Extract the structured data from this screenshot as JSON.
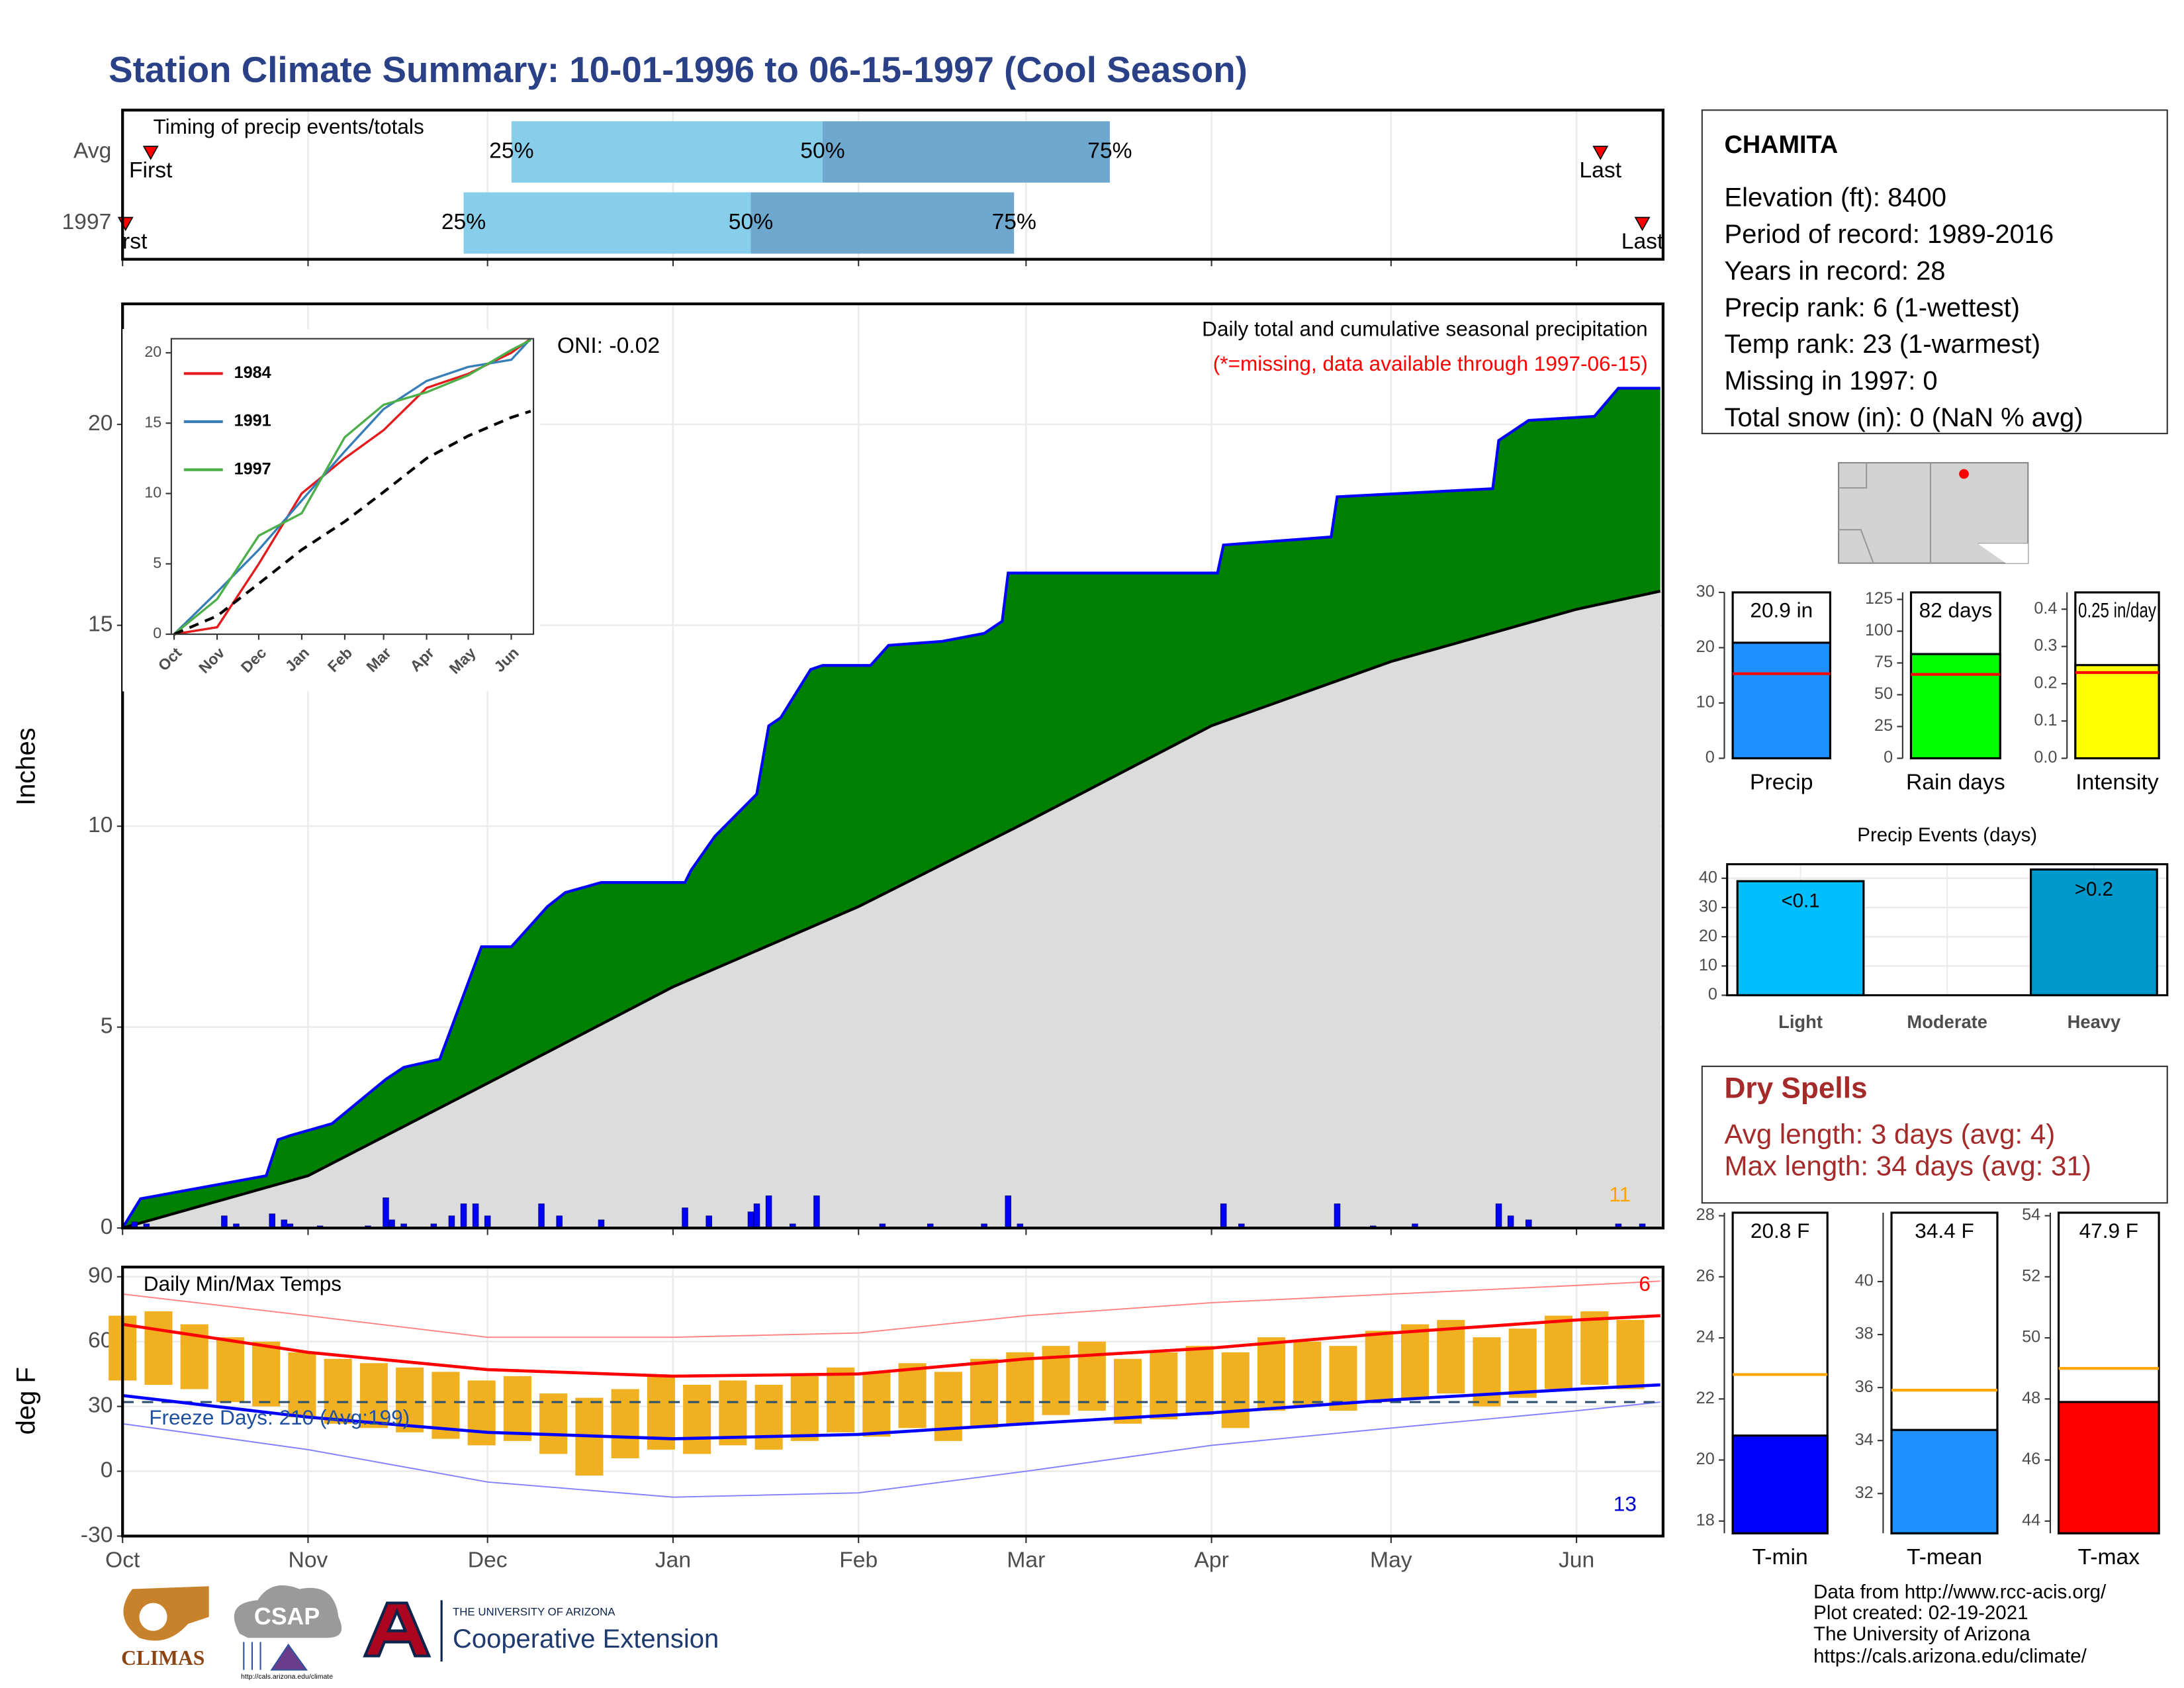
{
  "title": "Station Climate Summary: 10-01-1996 to 06-15-1997 (Cool Season)",
  "station_info": {
    "name": "CHAMITA",
    "lines": [
      "Elevation (ft): 8400",
      "Period of record: 1989-2016",
      "Years in record: 28",
      "Precip rank: 6 (1-wettest)",
      "Temp rank: 23 (1-warmest)",
      "Missing in 1997: 0",
      "Total snow (in): 0 (NaN % avg)"
    ]
  },
  "dry_spells": {
    "title": "Dry Spells",
    "lines": [
      "Avg length: 3 days (avg: 4)",
      "Max length: 34 days (avg: 31)"
    ]
  },
  "footer": [
    "Data from http://www.rcc-acis.org/",
    "Plot created: 02-19-2021",
    "The University of Arizona",
    "https://cals.arizona.edu/climate/"
  ],
  "logos": {
    "climas": "CLIMAS",
    "csap": "CSAP",
    "csap_url": "http://cals.arizona.edu/climate",
    "ua": "THE UNIVERSITY OF ARIZONA",
    "coop": "Cooperative Extension"
  },
  "chart_data": [
    {
      "type": "timeline",
      "title": "Timing of precip events/totals",
      "categories": [
        "Avg",
        "1997"
      ],
      "xlim": [
        0,
        257
      ],
      "first": [
        4.7,
        0.5
      ],
      "last": [
        247,
        254
      ],
      "q25": [
        65,
        57
      ],
      "q50": [
        117,
        105
      ],
      "q75": [
        165,
        149
      ],
      "first_label": "First",
      "last_label": "Last",
      "q_labels": [
        "25%",
        "50%",
        "75%"
      ],
      "colors": [
        "#87ceeb",
        "#6fa8cf"
      ],
      "marker_color": "#ff0000"
    },
    {
      "type": "cumulative",
      "ylabel": "Inches",
      "xlim": [
        0,
        257
      ],
      "ylim": [
        0,
        23
      ],
      "yticks": [
        0,
        5,
        10,
        15,
        20
      ],
      "grid": true,
      "annotations": [
        "Daily total and cumulative seasonal precipitation",
        "(*=missing, data available through 1997-06-15)",
        "ONI: -0.02",
        "11"
      ],
      "series": [
        {
          "color": "#008000",
          "line": "#0000ff",
          "x": [
            0,
            3,
            24,
            26,
            28,
            35,
            44,
            47,
            53,
            56,
            60,
            65,
            71,
            74,
            80,
            94,
            95,
            99,
            106,
            108,
            110,
            115,
            117,
            125,
            128,
            137,
            144,
            147,
            148,
            183,
            184,
            202,
            203,
            229,
            230,
            235,
            246,
            250,
            257
          ],
          "values": [
            0,
            0.73,
            1.3,
            2.2,
            2.3,
            2.6,
            3.7,
            4.0,
            4.2,
            5.4,
            7.0,
            7.0,
            8.0,
            8.35,
            8.6,
            8.6,
            8.9,
            9.75,
            10.8,
            12.5,
            12.7,
            13.9,
            14.0,
            14.0,
            14.5,
            14.6,
            14.8,
            15.1,
            16.3,
            16.3,
            17.0,
            17.2,
            18.2,
            18.4,
            19.6,
            20.1,
            20.2,
            20.9,
            20.9
          ]
        },
        {
          "color": "#dcdcdc",
          "line": "#000000",
          "x": [
            0,
            31,
            61,
            92,
            123,
            151,
            182,
            212,
            243,
            257
          ],
          "values": [
            0,
            1.3,
            3.6,
            6.0,
            8.0,
            10.1,
            12.5,
            14.1,
            15.4,
            15.85
          ]
        }
      ],
      "daily": {
        "color": "#0000ff",
        "x": [
          2,
          4,
          17,
          19,
          25,
          27,
          28,
          33,
          41,
          44,
          45,
          47,
          52,
          55,
          57,
          59,
          61,
          70,
          73,
          80,
          94,
          98,
          105,
          106,
          108,
          112,
          116,
          127,
          135,
          144,
          148,
          150,
          184,
          187,
          203,
          209,
          216,
          230,
          232,
          235,
          250,
          254
        ],
        "values": [
          0.15,
          0.1,
          0.3,
          0.1,
          0.35,
          0.2,
          0.1,
          0.05,
          0.05,
          0.75,
          0.2,
          0.1,
          0.1,
          0.3,
          0.6,
          0.6,
          0.3,
          0.6,
          0.3,
          0.2,
          0.5,
          0.3,
          0.4,
          0.6,
          0.8,
          0.1,
          0.8,
          0.1,
          0.1,
          0.1,
          0.8,
          0.1,
          0.6,
          0.1,
          0.6,
          0.05,
          0.1,
          0.6,
          0.3,
          0.2,
          0.1,
          0.1
        ]
      }
    },
    {
      "type": "line",
      "xlim": [
        0,
        257
      ],
      "ylim": [
        0,
        21
      ],
      "yticks": [
        0,
        5,
        10,
        15,
        20
      ],
      "xticks": [
        {
          "value": 0,
          "label": "Oct"
        },
        {
          "value": 31,
          "label": "Nov"
        },
        {
          "value": 61,
          "label": "Dec"
        },
        {
          "value": 92,
          "label": "Jan"
        },
        {
          "value": 123,
          "label": "Feb"
        },
        {
          "value": 151,
          "label": "Mar"
        },
        {
          "value": 182,
          "label": "Apr"
        },
        {
          "value": 212,
          "label": "May"
        },
        {
          "value": 243,
          "label": "Jun"
        }
      ],
      "x": [
        0,
        31,
        61,
        92,
        123,
        151,
        182,
        212,
        243,
        257
      ],
      "series": [
        {
          "name": "1984",
          "color": "#e41a1c",
          "values": [
            0,
            0.5,
            5,
            10,
            12.5,
            14.5,
            17.5,
            18.5,
            20.0,
            21
          ]
        },
        {
          "name": "1991",
          "color": "#377eb8",
          "values": [
            0,
            3,
            6,
            9.5,
            13,
            16,
            18,
            19,
            19.5,
            21
          ]
        },
        {
          "name": "1997",
          "color": "#4daf4a",
          "values": [
            0,
            2.5,
            7.0,
            8.6,
            14.0,
            16.3,
            17.2,
            18.4,
            20.2,
            20.9
          ]
        },
        {
          "color": "#000000",
          "dash": true,
          "values": [
            0,
            1.3,
            3.6,
            6.0,
            8.0,
            10.1,
            12.5,
            14.1,
            15.4,
            15.85
          ]
        }
      ]
    },
    {
      "type": "temperature",
      "title": "Daily Min/Max Temps",
      "ylabel": "deg F",
      "xlim": [
        0,
        257
      ],
      "ylim": [
        -30,
        94.5
      ],
      "yticks": [
        -30,
        0,
        30,
        60,
        90
      ],
      "grid": true,
      "xticks": [
        {
          "value": 0,
          "label": "Oct"
        },
        {
          "value": 31,
          "label": "Nov"
        },
        {
          "value": 61,
          "label": "Dec"
        },
        {
          "value": 92,
          "label": "Jan"
        },
        {
          "value": 123,
          "label": "Feb"
        },
        {
          "value": 151,
          "label": "Mar"
        },
        {
          "value": 182,
          "label": "Apr"
        },
        {
          "value": 212,
          "label": "May"
        },
        {
          "value": 243,
          "label": "Jun"
        }
      ],
      "annotations": [
        "Freeze Days: 210 (Avg:199)",
        "6",
        "13"
      ],
      "freeze_line": 32,
      "bars": {
        "color": "#f0b020",
        "x": [
          0,
          6,
          12,
          18,
          24,
          30,
          36,
          42,
          48,
          54,
          60,
          66,
          72,
          78,
          84,
          90,
          96,
          102,
          108,
          114,
          120,
          126,
          132,
          138,
          144,
          150,
          156,
          162,
          168,
          174,
          180,
          186,
          192,
          198,
          204,
          210,
          216,
          222,
          228,
          234,
          240,
          246,
          252
        ],
        "low": [
          42,
          40,
          38,
          32,
          30,
          25,
          22,
          20,
          18,
          15,
          12,
          14,
          8,
          -2,
          6,
          10,
          8,
          12,
          10,
          14,
          18,
          16,
          20,
          14,
          20,
          22,
          26,
          28,
          22,
          24,
          26,
          20,
          28,
          30,
          28,
          32,
          34,
          36,
          30,
          34,
          38,
          40,
          38
        ],
        "high": [
          72,
          74,
          68,
          62,
          60,
          55,
          52,
          50,
          48,
          46,
          42,
          44,
          36,
          34,
          38,
          44,
          40,
          42,
          40,
          44,
          48,
          46,
          50,
          46,
          52,
          55,
          58,
          60,
          52,
          55,
          58,
          55,
          62,
          60,
          58,
          65,
          68,
          70,
          62,
          66,
          72,
          74,
          70
        ]
      },
      "x": [
        0,
        31,
        61,
        92,
        123,
        151,
        182,
        212,
        243,
        257
      ],
      "series": [
        {
          "color": "#ff0000",
          "values": [
            68,
            55,
            47,
            44,
            45,
            52,
            57,
            64,
            70,
            72
          ]
        },
        {
          "color": "#0000ff",
          "values": [
            35,
            25,
            18,
            15,
            17,
            22,
            27,
            33,
            38,
            40
          ]
        },
        {
          "color": "#ff8080",
          "values": [
            82,
            72,
            62,
            62,
            64,
            72,
            78,
            82,
            86,
            88
          ]
        },
        {
          "color": "#8080ff",
          "values": [
            22,
            10,
            -5,
            -12,
            -10,
            0,
            12,
            20,
            28,
            32
          ]
        }
      ]
    },
    {
      "type": "stat_bar",
      "categories": [
        "Precip"
      ],
      "values": [
        20.9
      ],
      "value_labels": [
        "20.9 in"
      ],
      "average": 15.3,
      "color": "#1e90ff",
      "avg_color": "#ff0000",
      "ylim": [
        0,
        30
      ],
      "yticks": [
        0,
        10,
        20,
        30
      ]
    },
    {
      "type": "stat_bar",
      "categories": [
        "Rain days"
      ],
      "values": [
        82
      ],
      "value_labels": [
        "82 days"
      ],
      "average": 66,
      "color": "#00ff00",
      "avg_color": "#ff0000",
      "ylim": [
        0,
        130.5
      ],
      "yticks": [
        0,
        25,
        50,
        75,
        100,
        125
      ]
    },
    {
      "type": "stat_bar",
      "categories": [
        "Intensity"
      ],
      "values": [
        0.25
      ],
      "value_labels": [
        "0.25 in/day"
      ],
      "average": 0.23,
      "color": "#ffff00",
      "avg_color": "#ff0000",
      "ylim": [
        0,
        0.445
      ],
      "yticks": [
        {
          "value": 0,
          "label": "0.0"
        },
        0.1,
        0.2,
        0.3,
        0.4
      ]
    },
    {
      "type": "events",
      "title": "Precip Events (days)",
      "categories": [
        "Light",
        "Moderate",
        "Heavy"
      ],
      "values": [
        39,
        0,
        43
      ],
      "annotations": [
        "<0.1",
        null,
        ">0.2"
      ],
      "colors": [
        "#00bfff",
        "#00bfff",
        "#0099cc"
      ],
      "ylim": [
        0,
        44.8
      ],
      "yticks": [
        0,
        10,
        20,
        30,
        40
      ]
    },
    {
      "type": "stat_bar",
      "categories": [
        "T-min"
      ],
      "values": [
        20.8
      ],
      "value_labels": [
        "20.8 F"
      ],
      "average": 22.8,
      "color": "#0000ff",
      "avg_color": "#ffa500",
      "ylim": [
        17.6,
        28.1
      ],
      "yticks": [
        18,
        20,
        22,
        24,
        26,
        28
      ]
    },
    {
      "type": "stat_bar",
      "categories": [
        "T-mean"
      ],
      "values": [
        34.4
      ],
      "value_labels": [
        "34.4 F"
      ],
      "average": 35.9,
      "color": "#1e90ff",
      "avg_color": "#ffa500",
      "ylim": [
        30.5,
        42.6
      ],
      "yticks": [
        32,
        34,
        36,
        38,
        40
      ]
    },
    {
      "type": "stat_bar",
      "categories": [
        "T-max"
      ],
      "values": [
        47.9
      ],
      "value_labels": [
        "47.9 F"
      ],
      "average": 49,
      "color": "#ff0000",
      "avg_color": "#ffa500",
      "ylim": [
        43.6,
        54.1
      ],
      "yticks": [
        44,
        46,
        48,
        50,
        52,
        54
      ]
    }
  ]
}
